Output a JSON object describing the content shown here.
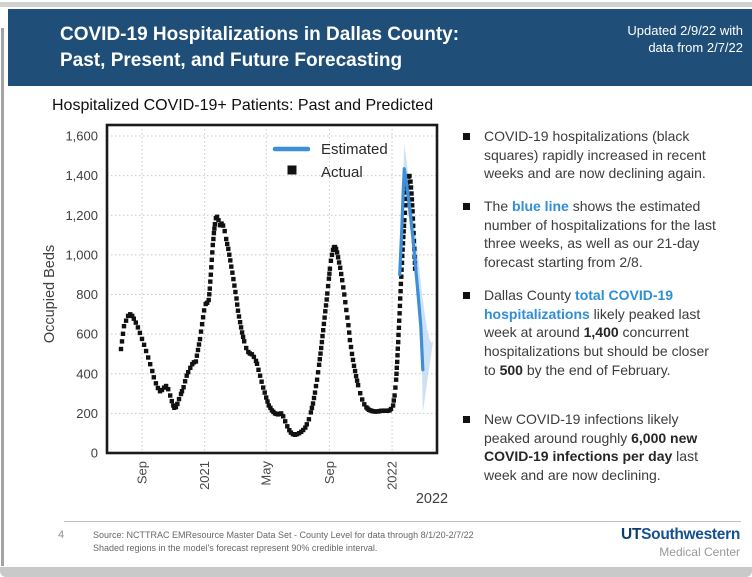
{
  "colors": {
    "banner_bg": "#1F4E79",
    "estimated_line": "#3E8ED8",
    "credible_band": "#AECFEE",
    "actual_marker": "#111111",
    "blue_text": "#2F8FD6"
  },
  "header": {
    "title_lines": [
      "COVID-19 Hospitalizations in Dallas County:",
      "Past, Present, and Future Forecasting"
    ],
    "updated_lines": [
      "Updated 2/9/22 with",
      "data from 2/7/22"
    ]
  },
  "chart_data": {
    "type": "scatter+line",
    "title": "Hospitalized COVID-19+ Patients: Past and Predicted",
    "ylabel": "Occupied Beds",
    "ylim": [
      0,
      1600
    ],
    "grid": true,
    "legend_position": "top-center-inside",
    "yticks": [
      {
        "v": 0,
        "label": "0"
      },
      {
        "v": 200,
        "label": "200"
      },
      {
        "v": 400,
        "label": "400"
      },
      {
        "v": 600,
        "label": "600"
      },
      {
        "v": 800,
        "label": "800"
      },
      {
        "v": 1000,
        "label": "1,000"
      },
      {
        "v": 1200,
        "label": "1,200"
      },
      {
        "v": 1400,
        "label": "1,400"
      },
      {
        "v": 1600,
        "label": "1,600"
      }
    ],
    "x_encoding": "days since 2020-08-01",
    "xlim": [
      -37,
      606
    ],
    "xticks": [
      {
        "t": 31,
        "label": "Sep"
      },
      {
        "t": 153,
        "label": "2021"
      },
      {
        "t": 273,
        "label": "May"
      },
      {
        "t": 396,
        "label": "Sep"
      },
      {
        "t": 518,
        "label": "2022"
      }
    ],
    "outer_xlabel": "2022",
    "legend": [
      {
        "label": "Estimated",
        "type": "line",
        "color": "#3E8ED8"
      },
      {
        "label": "Actual",
        "type": "square",
        "color": "#111111"
      }
    ],
    "band_note": "90% credible interval",
    "series": {
      "actual": [
        [
          -10,
          525
        ],
        [
          -4,
          640
        ],
        [
          0,
          668
        ],
        [
          4,
          692
        ],
        [
          8,
          700
        ],
        [
          12,
          692
        ],
        [
          15,
          678
        ],
        [
          19,
          658
        ],
        [
          23,
          634
        ],
        [
          27,
          606
        ],
        [
          31,
          576
        ],
        [
          35,
          546
        ],
        [
          39,
          515
        ],
        [
          43,
          482
        ],
        [
          47,
          448
        ],
        [
          51,
          414
        ],
        [
          54,
          382
        ],
        [
          58,
          352
        ],
        [
          62,
          328
        ],
        [
          66,
          312
        ],
        [
          70,
          318
        ],
        [
          74,
          330
        ],
        [
          78,
          338
        ],
        [
          82,
          322
        ],
        [
          86,
          290
        ],
        [
          89,
          262
        ],
        [
          92,
          240
        ],
        [
          94,
          228
        ],
        [
          97,
          232
        ],
        [
          100,
          248
        ],
        [
          103,
          272
        ],
        [
          107,
          298
        ],
        [
          109,
          312
        ],
        [
          112,
          332
        ],
        [
          115,
          362
        ],
        [
          118,
          390
        ],
        [
          121,
          408
        ],
        [
          125,
          430
        ],
        [
          129,
          448
        ],
        [
          132,
          458
        ],
        [
          136,
          462
        ],
        [
          140,
          520
        ],
        [
          144,
          575
        ],
        [
          148,
          650
        ],
        [
          152,
          720
        ],
        [
          155,
          752
        ],
        [
          158,
          758
        ],
        [
          161,
          772
        ],
        [
          163,
          830
        ],
        [
          165,
          900
        ],
        [
          167,
          975
        ],
        [
          169,
          1050
        ],
        [
          171,
          1110
        ],
        [
          173,
          1155
        ],
        [
          175,
          1185
        ],
        [
          177,
          1192
        ],
        [
          180,
          1175
        ],
        [
          183,
          1150
        ],
        [
          186,
          1158
        ],
        [
          189,
          1148
        ],
        [
          192,
          1120
        ],
        [
          195,
          1080
        ],
        [
          199,
          1030
        ],
        [
          203,
          972
        ],
        [
          207,
          910
        ],
        [
          211,
          845
        ],
        [
          215,
          780
        ],
        [
          218,
          718
        ],
        [
          222,
          660
        ],
        [
          226,
          608
        ],
        [
          230,
          564
        ],
        [
          234,
          530
        ],
        [
          238,
          510
        ],
        [
          241,
          502
        ],
        [
          245,
          498
        ],
        [
          249,
          485
        ],
        [
          253,
          465
        ],
        [
          255,
          450
        ],
        [
          261,
          390
        ],
        [
          267,
          330
        ],
        [
          273,
          280
        ],
        [
          278,
          240
        ],
        [
          284,
          215
        ],
        [
          290,
          200
        ],
        [
          296,
          195
        ],
        [
          302,
          200
        ],
        [
          306,
          185
        ],
        [
          310,
          160
        ],
        [
          314,
          135
        ],
        [
          318,
          115
        ],
        [
          321,
          103
        ],
        [
          325,
          95
        ],
        [
          329,
          92
        ],
        [
          333,
          95
        ],
        [
          337,
          100
        ],
        [
          341,
          107
        ],
        [
          345,
          116
        ],
        [
          349,
          128
        ],
        [
          352,
          145
        ],
        [
          356,
          170
        ],
        [
          360,
          205
        ],
        [
          364,
          250
        ],
        [
          368,
          305
        ],
        [
          372,
          370
        ],
        [
          376,
          445
        ],
        [
          380,
          530
        ],
        [
          384,
          620
        ],
        [
          388,
          715
        ],
        [
          392,
          805
        ],
        [
          395,
          880
        ],
        [
          397,
          930
        ],
        [
          399,
          970
        ],
        [
          401,
          1000
        ],
        [
          403,
          1025
        ],
        [
          405,
          1038
        ],
        [
          407,
          1040
        ],
        [
          409,
          1030
        ],
        [
          411,
          1012
        ],
        [
          413,
          988
        ],
        [
          417,
          935
        ],
        [
          421,
          872
        ],
        [
          425,
          800
        ],
        [
          429,
          722
        ],
        [
          433,
          645
        ],
        [
          436,
          570
        ],
        [
          440,
          500
        ],
        [
          444,
          440
        ],
        [
          448,
          388
        ],
        [
          452,
          342
        ],
        [
          456,
          302
        ],
        [
          460,
          270
        ],
        [
          464,
          246
        ],
        [
          468,
          230
        ],
        [
          473,
          218
        ],
        [
          479,
          212
        ],
        [
          485,
          209
        ],
        [
          491,
          210
        ],
        [
          497,
          213
        ],
        [
          503,
          214
        ],
        [
          509,
          213
        ],
        [
          513,
          215
        ],
        [
          516,
          222
        ],
        [
          520,
          240
        ],
        [
          523,
          290
        ],
        [
          526,
          370
        ],
        [
          528,
          460
        ],
        [
          530,
          560
        ],
        [
          532,
          668
        ],
        [
          534,
          780
        ],
        [
          536,
          890
        ],
        [
          538,
          995
        ],
        [
          540,
          1090
        ],
        [
          542,
          1175
        ],
        [
          544,
          1250
        ],
        [
          546,
          1315
        ],
        [
          548,
          1365
        ],
        [
          550,
          1395
        ],
        [
          552,
          1398
        ],
        [
          554,
          1370
        ],
        [
          556,
          1310
        ],
        [
          558,
          1220
        ],
        [
          560,
          1110
        ],
        [
          562,
          990
        ],
        [
          563,
          930
        ]
      ],
      "estimated": [
        [
          533,
          900
        ],
        [
          537,
          1130
        ],
        [
          540,
          1330
        ],
        [
          542,
          1435
        ],
        [
          544,
          1400
        ],
        [
          547,
          1345
        ],
        [
          551,
          1265
        ],
        [
          555,
          1175
        ],
        [
          559,
          1075
        ],
        [
          563,
          965
        ],
        [
          567,
          850
        ],
        [
          571,
          735
        ],
        [
          574,
          640
        ],
        [
          576,
          530
        ],
        [
          578,
          420
        ]
      ],
      "band_upper": [
        [
          533,
          950
        ],
        [
          536,
          1160
        ],
        [
          539,
          1350
        ],
        [
          541,
          1480
        ],
        [
          542,
          1560
        ],
        [
          545,
          1500
        ],
        [
          548,
          1440
        ],
        [
          552,
          1365
        ],
        [
          556,
          1285
        ],
        [
          560,
          1200
        ],
        [
          564,
          1110
        ],
        [
          568,
          1015
        ],
        [
          572,
          915
        ],
        [
          576,
          815
        ],
        [
          581,
          715
        ],
        [
          586,
          630
        ],
        [
          591,
          575
        ],
        [
          595,
          555
        ],
        [
          598,
          565
        ]
      ],
      "band_lower": [
        [
          533,
          860
        ],
        [
          536,
          1040
        ],
        [
          539,
          1210
        ],
        [
          541,
          1300
        ],
        [
          542,
          1330
        ],
        [
          545,
          1290
        ],
        [
          548,
          1235
        ],
        [
          552,
          1165
        ],
        [
          556,
          1085
        ],
        [
          560,
          995
        ],
        [
          564,
          895
        ],
        [
          568,
          785
        ],
        [
          571,
          690
        ],
        [
          574,
          575
        ],
        [
          576,
          470
        ],
        [
          577,
          330
        ],
        [
          578,
          205
        ]
      ]
    }
  },
  "bullets": [
    [
      {
        "text": "COVID-19 hospitalizations (black squares) rapidly increased in recent weeks and are now declining again."
      }
    ],
    [
      {
        "text": "The "
      },
      {
        "text": "blue line",
        "style": "blue"
      },
      {
        "text": " shows the estimated number of hospitalizations for the last three weeks, as well as our 21-day forecast starting from 2/8."
      }
    ],
    [
      {
        "text": "Dallas County "
      },
      {
        "text": "total COVID-19 hospitalizations",
        "style": "blue"
      },
      {
        "text": " likely peaked last week at around "
      },
      {
        "text": "1,400",
        "style": "bold"
      },
      {
        "text": " concurrent hospitalizations but should be closer to "
      },
      {
        "text": "500",
        "style": "bold"
      },
      {
        "text": " by the end of February."
      }
    ],
    [
      {
        "text": "New COVID-19 infections likely peaked around roughly "
      },
      {
        "text": "6,000 new COVID-19 infections per day",
        "style": "bold"
      },
      {
        "text": " last week and are now declining."
      }
    ]
  ],
  "footer": {
    "page_number": "4",
    "source_lines": [
      "Source: NCTTRAC EMResource Master Data Set - County Level for data through 8/1/20-2/7/22",
      "Shaded regions in the model's forecast represent 90% credible interval."
    ],
    "logo_ut": "UT",
    "logo_rest": "Southwestern",
    "logo_subtitle": "Medical Center"
  }
}
